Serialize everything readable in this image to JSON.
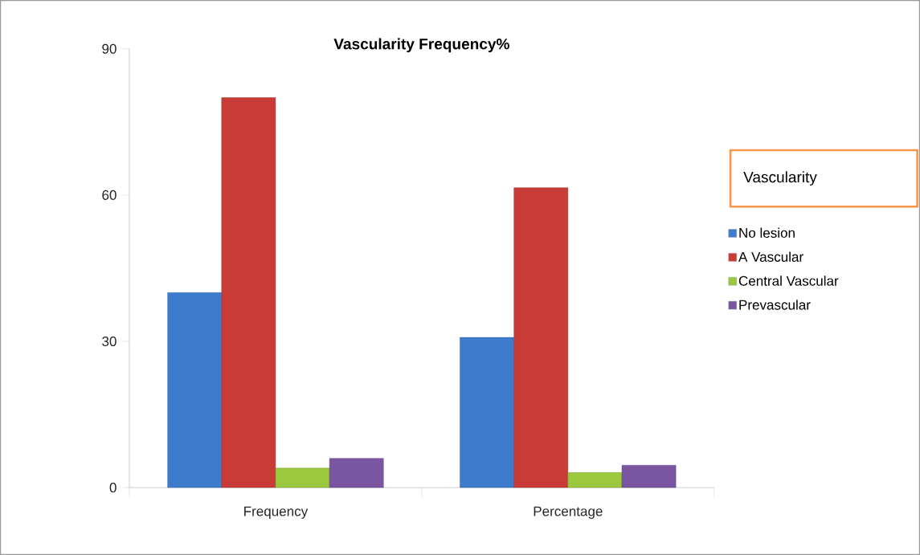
{
  "chart_data": {
    "type": "bar",
    "title": "Vascularity Frequency%",
    "legend_title": "Vascularity",
    "categories": [
      "Frequency",
      "Percentage"
    ],
    "series": [
      {
        "name": "No lesion",
        "color": "#3d7ccc",
        "values": [
          40,
          30.8
        ]
      },
      {
        "name": "A Vascular",
        "color": "#c83b37",
        "values": [
          80,
          61.5
        ]
      },
      {
        "name": "Central Vascular",
        "color": "#9bc83c",
        "values": [
          4,
          3.1
        ]
      },
      {
        "name": "Prevascular",
        "color": "#7a55a2",
        "values": [
          6,
          4.6
        ]
      }
    ],
    "ylim": [
      0,
      90
    ],
    "yticks": [
      0,
      30,
      60,
      90
    ],
    "grid": false,
    "legend": "right"
  }
}
